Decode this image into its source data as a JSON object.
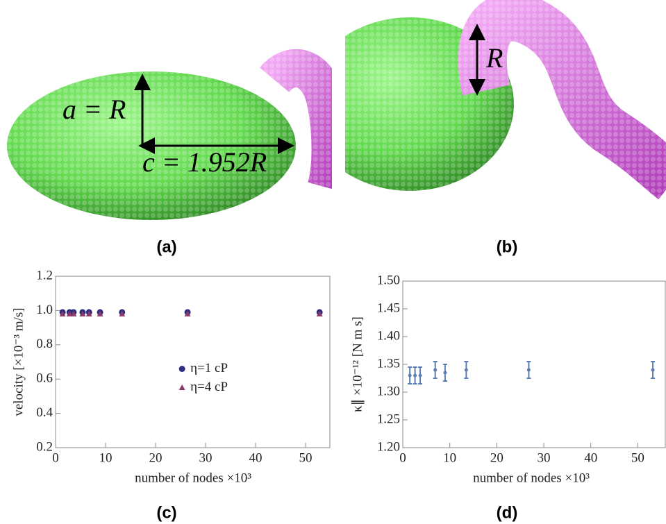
{
  "panel_labels": [
    "(a)",
    "(b)",
    "(c)",
    "(d)"
  ],
  "renderings": {
    "a": [
      "a = R",
      "c = 1.952R"
    ],
    "b": [
      "R"
    ]
  },
  "chart_data": [
    {
      "type": "scatter",
      "x_label": "number of nodes ×10³",
      "y_label": "velocity [×10⁻³ m/s]",
      "x": [
        1.4,
        2.8,
        3.6,
        5.4,
        6.7,
        8.9,
        13.3,
        26.4,
        52.8
      ],
      "series": [
        {
          "name": "η=1 cP",
          "color": "#2e2e80",
          "marker": "circle",
          "values": [
            0.99,
            0.99,
            0.99,
            0.99,
            0.99,
            0.99,
            0.99,
            0.99,
            0.99
          ]
        },
        {
          "name": "η=4 cP",
          "color": "#8a3a68",
          "marker": "triangle",
          "values": [
            0.98,
            0.98,
            0.98,
            0.98,
            0.98,
            0.98,
            0.98,
            0.98,
            0.98
          ]
        }
      ],
      "xlim": [
        0,
        55
      ],
      "ylim": [
        0.2,
        1.2
      ],
      "xticks": [
        0,
        10,
        20,
        30,
        40,
        50
      ],
      "yticks": [
        0.2,
        0.4,
        0.6,
        0.8,
        {
          "value": 1,
          "label": "1.0"
        },
        1.2
      ],
      "legend": "center"
    },
    {
      "type": "errorbar",
      "x_label": "number of nodes ×10³",
      "y_label": "κ∥ ×10⁻¹² [N m s]",
      "x": [
        1.5,
        2.6,
        3.7,
        6.9,
        9.0,
        13.5,
        26.8,
        53.2
      ],
      "series": [
        {
          "color": "#5b7fb2",
          "values": [
            1.33,
            1.33,
            1.33,
            1.34,
            1.335,
            1.34,
            1.34,
            1.34
          ],
          "errors": [
            0.015,
            0.015,
            0.015,
            0.015,
            0.015,
            0.015,
            0.015,
            0.015
          ]
        }
      ],
      "xlim": [
        0,
        56
      ],
      "ylim": [
        1.2,
        1.5
      ],
      "xticks": [
        0,
        10,
        20,
        30,
        40,
        50
      ],
      "yticks": [
        {
          "value": 1.2,
          "label": "1.20"
        },
        1.25,
        {
          "value": 1.3,
          "label": "1.30"
        },
        1.35,
        {
          "value": 1.4,
          "label": "1.40"
        },
        1.45,
        {
          "value": 1.5,
          "label": "1.50"
        }
      ]
    }
  ]
}
